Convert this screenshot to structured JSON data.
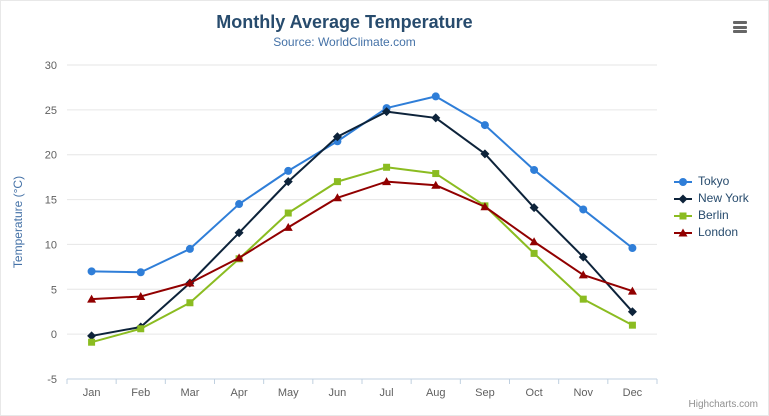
{
  "credits": {
    "label": "Highcharts.com"
  },
  "export_menu": {
    "icon": "hamburger-icon"
  },
  "chart_data": {
    "type": "line",
    "title": "Monthly Average Temperature",
    "subtitle": "Source: WorldClimate.com",
    "categories": [
      "Jan",
      "Feb",
      "Mar",
      "Apr",
      "May",
      "Jun",
      "Jul",
      "Aug",
      "Sep",
      "Oct",
      "Nov",
      "Dec"
    ],
    "xlabel": "",
    "ylabel": "Temperature (°C)",
    "ylim": [
      -5,
      30
    ],
    "ytick_interval": 5,
    "grid": true,
    "legend_position": "right",
    "series": [
      {
        "name": "Tokyo",
        "color": "#2f7ed8",
        "marker": "circle",
        "values": [
          7.0,
          6.9,
          9.5,
          14.5,
          18.2,
          21.5,
          25.2,
          26.5,
          23.3,
          18.3,
          13.9,
          9.6
        ]
      },
      {
        "name": "New York",
        "color": "#0d233a",
        "marker": "diamond",
        "values": [
          -0.2,
          0.8,
          5.7,
          11.3,
          17.0,
          22.0,
          24.8,
          24.1,
          20.1,
          14.1,
          8.6,
          2.5
        ]
      },
      {
        "name": "Berlin",
        "color": "#8bbc21",
        "marker": "square",
        "values": [
          -0.9,
          0.6,
          3.5,
          8.4,
          13.5,
          17.0,
          18.6,
          17.9,
          14.3,
          9.0,
          3.9,
          1.0
        ]
      },
      {
        "name": "London",
        "color": "#910000",
        "marker": "triangle",
        "values": [
          3.9,
          4.2,
          5.7,
          8.5,
          11.9,
          15.2,
          17.0,
          16.6,
          14.2,
          10.3,
          6.6,
          4.8
        ]
      }
    ],
    "axis_colors": {
      "label": "#606060",
      "gridline": "#e6e6e6",
      "axis_line": "#c0d0e0"
    }
  }
}
